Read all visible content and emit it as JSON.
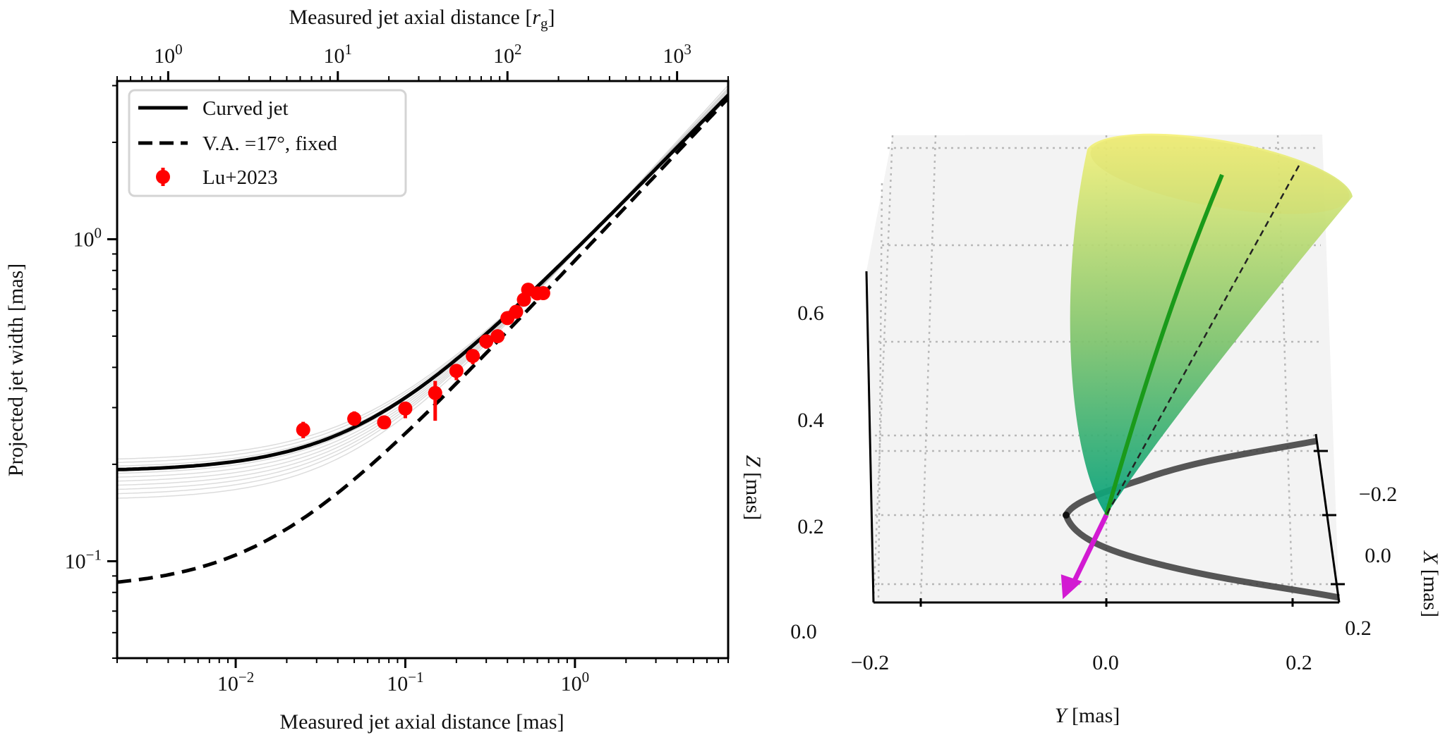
{
  "chart_data": [
    {
      "type": "line",
      "title": "",
      "xlabel": "Measured jet axial distance [mas]",
      "xlabel_top": {
        "text": "Measured jet axial distance [",
        "var": "r",
        "sub": "g",
        "close": "]"
      },
      "ylabel": "Projected jet width [mas]",
      "xscale": "log",
      "yscale": "log",
      "xlim": [
        0.002,
        8
      ],
      "ylim": [
        0.05,
        3.1
      ],
      "grid": false,
      "legend_position": "top-left",
      "xticks": [
        {
          "value": 0.01,
          "base": "10",
          "exp": "−2"
        },
        {
          "value": 0.1,
          "base": "10",
          "exp": "−1"
        },
        {
          "value": 1,
          "base": "10",
          "exp": "0"
        }
      ],
      "yticks": [
        {
          "value": 0.1,
          "base": "10",
          "exp": "−1"
        },
        {
          "value": 1,
          "base": "10",
          "exp": "0"
        }
      ],
      "top_axis": {
        "unit": "r_g",
        "rg_per_mas": 250,
        "ticks": [
          {
            "value": 1,
            "base": "10",
            "exp": "0"
          },
          {
            "value": 10,
            "base": "10",
            "exp": "1"
          },
          {
            "value": 100,
            "base": "10",
            "exp": "2"
          },
          {
            "value": 1000,
            "base": "10",
            "exp": "3"
          }
        ]
      },
      "legend": [
        {
          "label": "Curved jet",
          "style": "solid"
        },
        {
          "label": "V.A. =17°, fixed",
          "style": "dashed"
        },
        {
          "label": "Lu+2023",
          "style": "marker"
        }
      ],
      "series": [
        {
          "name": "Curved jet",
          "model": "w = sqrt(w0^2 + (c (x/x1)^p)^2)",
          "w0": 0.19,
          "c": 1.0,
          "x1": 1.2,
          "p": 0.542,
          "color": "#000000"
        },
        {
          "name": "V.A. =17°, fixed",
          "model": "w = sqrt(w0^2 + (c (x/x1)^p)^2)",
          "w0": 0.082,
          "c": 0.855,
          "x1": 1.0,
          "p": 0.56,
          "color": "#000000"
        },
        {
          "name": "posterior samples",
          "color": "#9a9a9a",
          "w0_values": [
            0.155,
            0.16,
            0.165,
            0.17,
            0.175,
            0.18,
            0.185,
            0.195,
            0.2,
            0.205
          ],
          "p_values": [
            0.58,
            0.57,
            0.565,
            0.56,
            0.555,
            0.55,
            0.545,
            0.54,
            0.535,
            0.53
          ]
        }
      ],
      "points": {
        "name": "Lu+2023",
        "color": "#ff0000",
        "x": [
          0.025,
          0.05,
          0.075,
          0.1,
          0.15,
          0.2,
          0.25,
          0.3,
          0.35,
          0.4,
          0.45,
          0.5,
          0.53,
          0.6,
          0.65
        ],
        "y": [
          0.256,
          0.277,
          0.27,
          0.298,
          0.333,
          0.39,
          0.434,
          0.482,
          0.5,
          0.569,
          0.595,
          0.649,
          0.697,
          0.679,
          0.68
        ],
        "err_lo": [
          0.015,
          0.012,
          0.01,
          0.02,
          0.06,
          0.025,
          0.025,
          0.025,
          0.02,
          0.02,
          0.02,
          0.02,
          0.02,
          0.02,
          0.02
        ],
        "err_hi": [
          0.015,
          0.015,
          0.01,
          0.015,
          0.03,
          0.02,
          0.02,
          0.02,
          0.02,
          0.02,
          0.02,
          0.02,
          0.02,
          0.02,
          0.02
        ]
      }
    },
    {
      "type": "3d-surface",
      "zlabel": "[mas]",
      "zlabel_var": "Z",
      "ylabel": "[mas]",
      "ylabel_var": "Y",
      "xlabel": "[mas]",
      "xlabel_var": "X",
      "zticks": [
        "0.0",
        "0.2",
        "0.4",
        "0.6"
      ],
      "yticks": [
        "−0.2",
        "0.0",
        "0.2"
      ],
      "xticks": [
        "−0.2",
        "0.0",
        "0.2"
      ],
      "colors": {
        "cone_bottom": "#00a07a",
        "cone_top": "#f7f27a",
        "jet_axis": "#1a9a1a",
        "observer_arrow": "#d21ad2",
        "projection": "#3a3a3a"
      }
    }
  ]
}
